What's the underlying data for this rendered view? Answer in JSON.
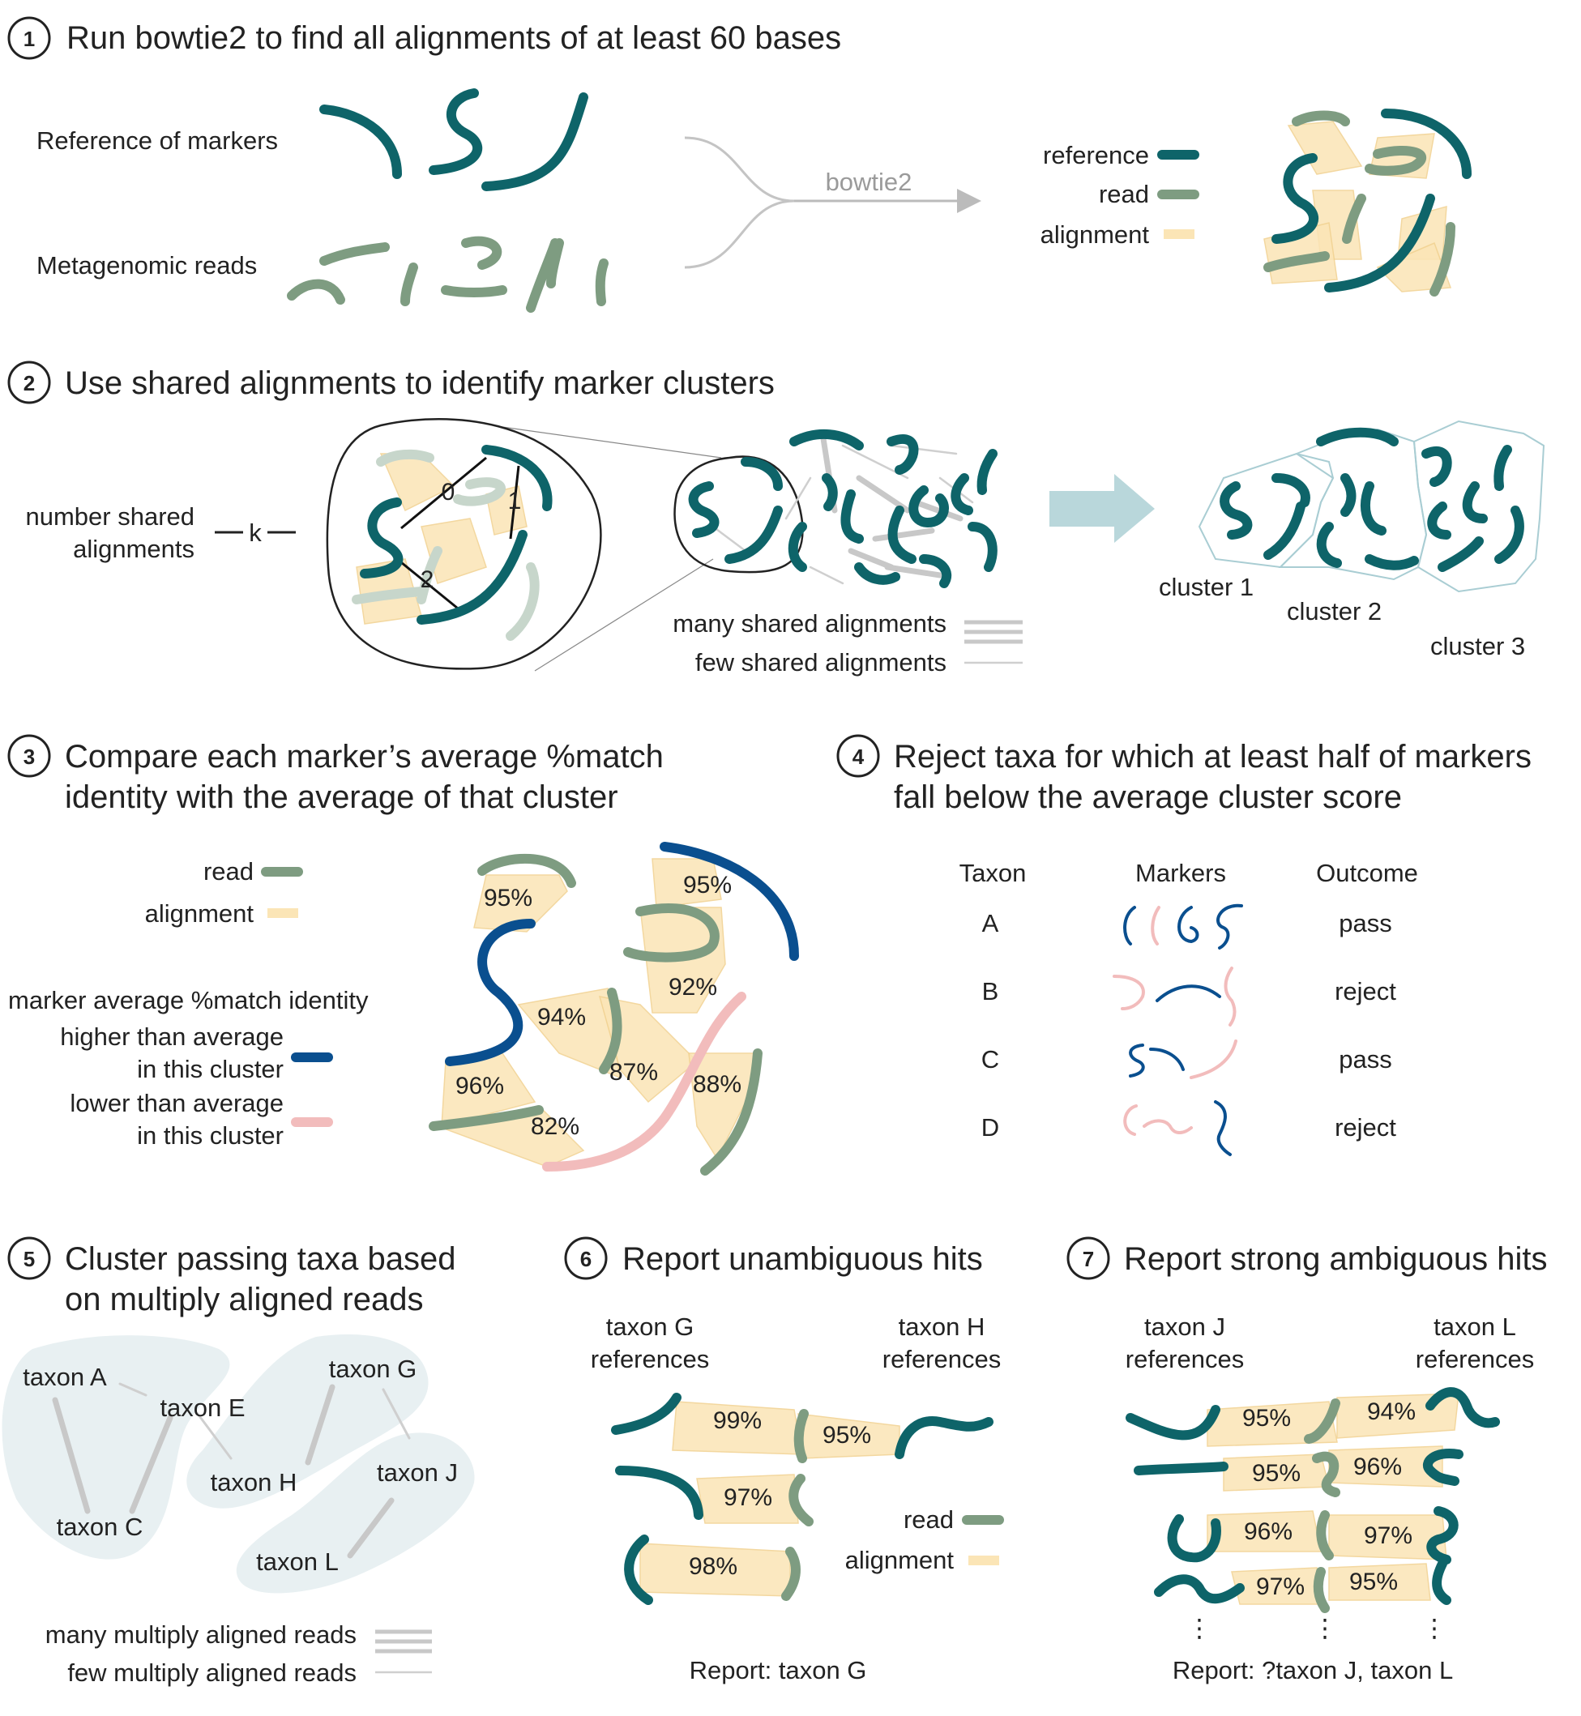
{
  "step1": {
    "number": "1",
    "title": "Run bowtie2 to find all alignments of at least 60 bases",
    "label_reference": "Reference of markers",
    "label_reads": "Metagenomic reads",
    "tool_label": "bowtie2",
    "legend": {
      "reference": "reference",
      "read": "read",
      "alignment": "alignment"
    }
  },
  "step2": {
    "number": "2",
    "title": "Use shared alignments to identify marker clusters",
    "k_label_line1": "number shared",
    "k_label_line2": "alignments",
    "k_symbol": "k",
    "edge_counts": [
      "0",
      "1",
      "2"
    ],
    "legend": {
      "many": "many shared alignments",
      "few": "few shared alignments"
    },
    "clusters": [
      "cluster 1",
      "cluster 2",
      "cluster 3"
    ]
  },
  "step3": {
    "number": "3",
    "title_line1": "Compare each marker’s average %match",
    "title_line2": "identity with the average of that cluster",
    "legend": {
      "read": "read",
      "alignment": "alignment"
    },
    "identity_heading": "marker average %match identity",
    "higher_line1": "higher than average",
    "higher_line2": "in this cluster",
    "lower_line1": "lower than average",
    "lower_line2": "in this cluster",
    "percents": [
      "95%",
      "95%",
      "92%",
      "94%",
      "87%",
      "88%",
      "96%",
      "82%"
    ]
  },
  "step4": {
    "number": "4",
    "title_line1": "Reject taxa for which at least half of markers",
    "title_line2": "fall below the average cluster score",
    "columns": [
      "Taxon",
      "Markers",
      "Outcome"
    ],
    "rows": [
      {
        "taxon": "A",
        "outcome": "pass"
      },
      {
        "taxon": "B",
        "outcome": "reject"
      },
      {
        "taxon": "C",
        "outcome": "pass"
      },
      {
        "taxon": "D",
        "outcome": "reject"
      }
    ]
  },
  "step5": {
    "number": "5",
    "title_line1": "Cluster passing taxa based",
    "title_line2": "on multiply aligned reads",
    "taxa": [
      "taxon A",
      "taxon E",
      "taxon G",
      "taxon C",
      "taxon H",
      "taxon J",
      "taxon L"
    ],
    "legend": {
      "many": "many multiply aligned reads",
      "few": "few multiply aligned reads"
    }
  },
  "step6": {
    "number": "6",
    "title": "Report unambiguous hits",
    "left_header_line1": "taxon G",
    "left_header_line2": "references",
    "right_header_line1": "taxon H",
    "right_header_line2": "references",
    "percents": [
      "99%",
      "95%",
      "97%",
      "98%"
    ],
    "legend": {
      "read": "read",
      "alignment": "alignment"
    },
    "report": "Report: taxon G"
  },
  "step7": {
    "number": "7",
    "title": "Report strong ambiguous hits",
    "left_header_line1": "taxon J",
    "left_header_line2": "references",
    "right_header_line1": "taxon L",
    "right_header_line2": "references",
    "percents": [
      "95%",
      "94%",
      "95%",
      "96%",
      "96%",
      "97%",
      "97%",
      "95%"
    ],
    "ellipsis": "⋮",
    "report": "Report: ?taxon J, taxon L"
  },
  "colors": {
    "reference": "#0e6469",
    "read": "#7e9c81",
    "alignment": "#fbe5b6",
    "higher": "#0a4f8f",
    "lower": "#f2bcbc",
    "arrow": "#b9d7db"
  }
}
